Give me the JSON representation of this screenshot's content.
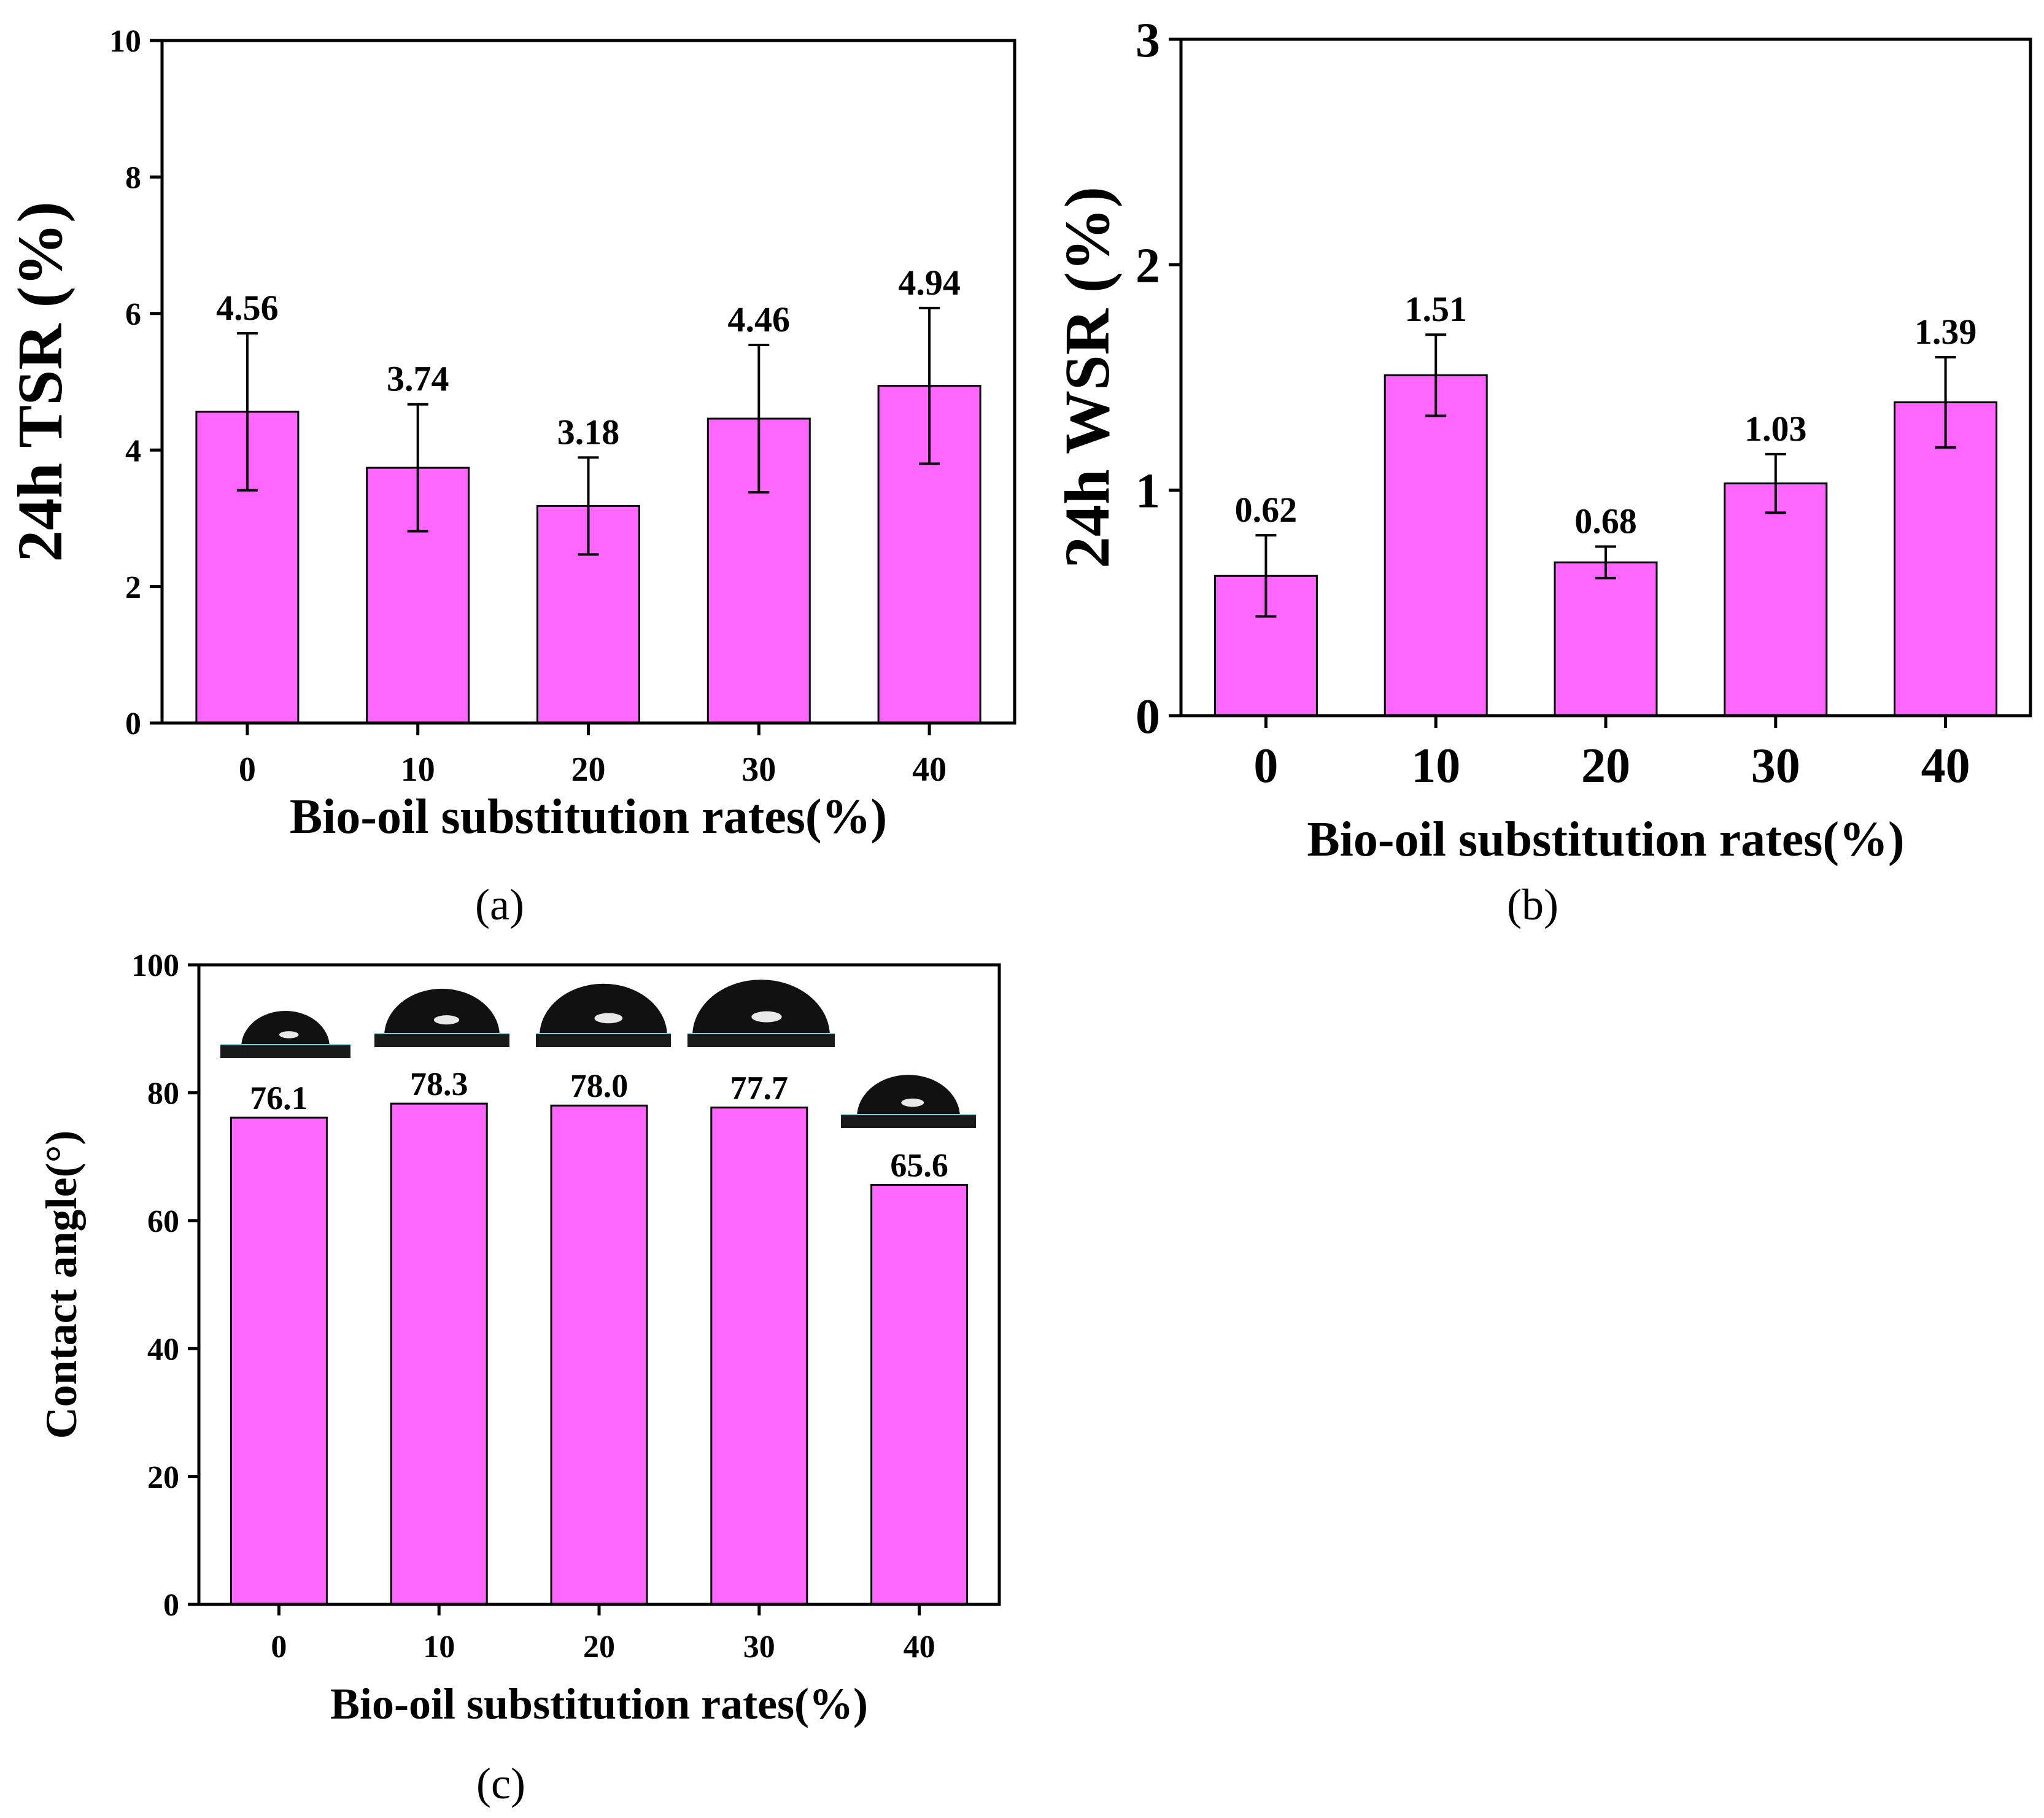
{
  "colors": {
    "bar": "#ff66ff",
    "axis": "#000000",
    "drop": "#111111",
    "substrate": "#1a1a1a",
    "highlight": "#6fd6e6"
  },
  "chart_data": [
    {
      "type": "bar",
      "panel": "(a)",
      "categories": [
        "0",
        "10",
        "20",
        "30",
        "40"
      ],
      "values": [
        4.56,
        3.74,
        3.18,
        4.46,
        4.94
      ],
      "value_labels": [
        "4.56",
        "3.74",
        "3.18",
        "4.46",
        "4.94"
      ],
      "error_bars": [
        1.15,
        0.93,
        0.71,
        1.08,
        1.14
      ],
      "xlabel": "Bio-oil substitution rates(%)",
      "ylabel": "24h TSR (%)",
      "ylim": [
        0,
        10
      ],
      "yticks": [
        "0",
        "2",
        "4",
        "6",
        "8",
        "10"
      ],
      "ytick_values": [
        0,
        2,
        4,
        6,
        8,
        10
      ]
    },
    {
      "type": "bar",
      "panel": "(b)",
      "categories": [
        "0",
        "10",
        "20",
        "30",
        "40"
      ],
      "values": [
        0.62,
        1.51,
        0.68,
        1.03,
        1.39
      ],
      "value_labels": [
        "0.62",
        "1.51",
        "0.68",
        "1.03",
        "1.39"
      ],
      "error_bars": [
        0.18,
        0.18,
        0.07,
        0.13,
        0.2
      ],
      "xlabel": "Bio-oil substitution rates(%)",
      "ylabel": "24h WSR (%)",
      "ylim": [
        0,
        3
      ],
      "yticks": [
        "0",
        "1",
        "2",
        "3"
      ],
      "ytick_values": [
        0,
        1,
        2,
        3
      ]
    },
    {
      "type": "bar",
      "panel": "(c)",
      "categories": [
        "0",
        "10",
        "20",
        "30",
        "40"
      ],
      "values": [
        76.1,
        78.3,
        78.0,
        77.7,
        65.6
      ],
      "value_labels": [
        "76.1",
        "78.3",
        "78.0",
        "77.7",
        "65.6"
      ],
      "xlabel": "Bio-oil substitution rates(%)",
      "ylabel": "Contact angle(°)",
      "ylim": [
        0,
        100
      ],
      "yticks": [
        "0",
        "20",
        "40",
        "60",
        "80",
        "100"
      ],
      "ytick_values": [
        0,
        20,
        40,
        60,
        80,
        100
      ],
      "insets": [
        "water droplet image",
        "water droplet image",
        "water droplet image",
        "water droplet image",
        "water droplet image"
      ]
    }
  ]
}
